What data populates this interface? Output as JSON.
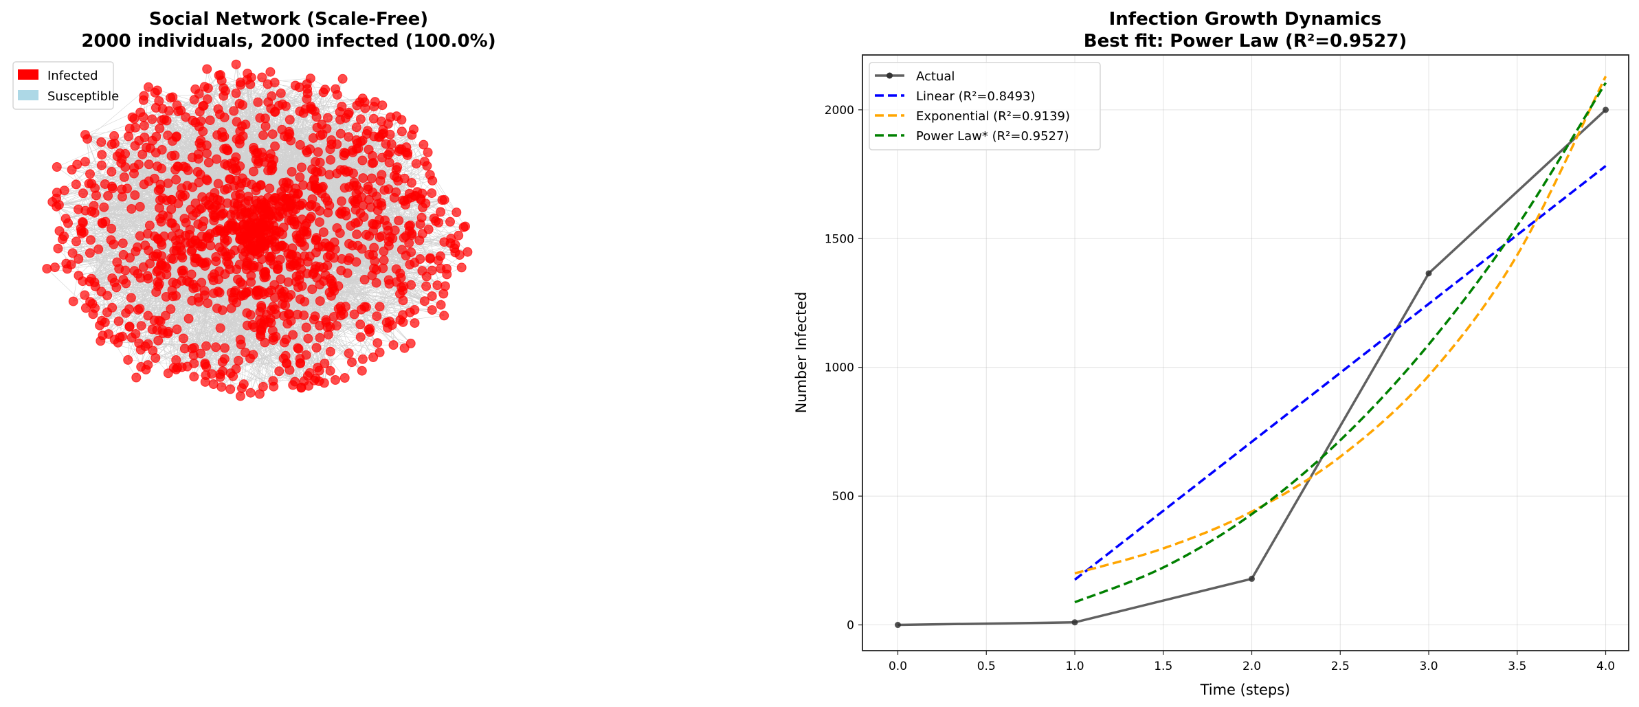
{
  "chart_data": [
    {
      "type": "network",
      "title_line1": "Social Network (Scale-Free)",
      "title_line2": "2000 individuals, 2000 infected (100.0%)",
      "total_individuals": 2000,
      "infected": 2000,
      "infected_percent": 100.0,
      "legend": [
        {
          "label": "Infected",
          "color": "#ff0000"
        },
        {
          "label": "Susceptible",
          "color": "#add8e6"
        }
      ],
      "legend_placement": "top-left"
    },
    {
      "type": "line",
      "title_line1": "Infection Growth Dynamics",
      "title_line2": "Best fit: Power Law (R²=0.9527)",
      "xlabel": "Time (steps)",
      "ylabel": "Number Infected",
      "xlim": [
        -0.2,
        4.13
      ],
      "ylim": [
        -100,
        2213
      ],
      "xticks": [
        "0.0",
        "0.5",
        "1.0",
        "1.5",
        "2.0",
        "2.5",
        "3.0",
        "3.5",
        "4.0"
      ],
      "yticks": [
        "0",
        "500",
        "1000",
        "1500",
        "2000"
      ],
      "grid": true,
      "legend_placement": "top-left",
      "series": [
        {
          "name": "Actual",
          "label": "Actual",
          "color": "#333333",
          "style": "solid-marker",
          "x": [
            0,
            1,
            2,
            3,
            4
          ],
          "y": [
            0,
            10,
            179,
            1365,
            2000
          ]
        },
        {
          "name": "Linear",
          "label": "Linear (R²=0.8493)",
          "color": "#0000ff",
          "style": "dashed",
          "x": [
            1,
            4
          ],
          "y": [
            175.5,
            1782
          ]
        },
        {
          "name": "Exponential",
          "label": "Exponential (R²=0.9139)",
          "color": "#ffa500",
          "style": "dashed",
          "x": [
            1,
            1.5,
            2,
            2.5,
            3,
            3.5,
            4
          ],
          "y": [
            200,
            297,
            440,
            653,
            968,
            1436,
            2130
          ]
        },
        {
          "name": "Power Law",
          "label": "Power Law* (R²=0.9527)",
          "color": "#008000",
          "style": "dashed",
          "x": [
            1,
            1.5,
            2,
            2.5,
            3,
            3.5,
            4
          ],
          "y": [
            88,
            223,
            430,
            717,
            1089,
            1549,
            2105
          ]
        }
      ]
    }
  ]
}
